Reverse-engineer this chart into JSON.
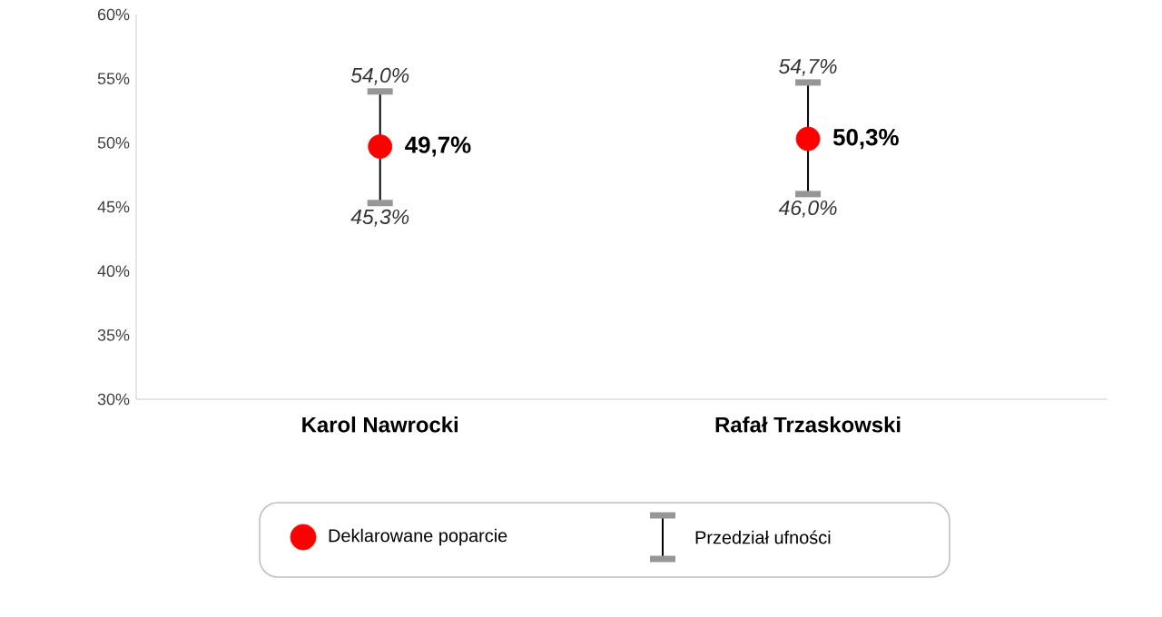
{
  "chart_data": {
    "type": "scatter",
    "categories": [
      "Karol Nawrocki",
      "Rafał Trzaskowski"
    ],
    "series": [
      {
        "name": "Deklarowane poparcie",
        "color": "#ff0000",
        "values": [
          49.7,
          50.3
        ],
        "errors": [
          [
            45.3,
            54.0
          ],
          [
            46.0,
            54.7
          ]
        ],
        "value_labels": [
          "49,7%",
          "50,3%"
        ]
      }
    ],
    "annotations": [
      {
        "text": "54,0%",
        "x": "Karol Nawrocki",
        "y": 54.0
      },
      {
        "text": "45,3%",
        "x": "Karol Nawrocki",
        "y": 45.3
      },
      {
        "text": "54,7%",
        "x": "Rafał Trzaskowski",
        "y": 54.7
      },
      {
        "text": "46,0%",
        "x": "Rafał Trzaskowski",
        "y": 46.0
      },
      "Przedział ufności"
    ],
    "ylim": [
      30,
      60
    ],
    "yticks": [
      {
        "value": 30,
        "label": "30%"
      },
      {
        "value": 35,
        "label": "35%"
      },
      {
        "value": 40,
        "label": "40%"
      },
      {
        "value": 45,
        "label": "45%"
      },
      {
        "value": 50,
        "label": "50%"
      },
      {
        "value": 55,
        "label": "55%"
      },
      {
        "value": 60,
        "label": "60%"
      }
    ],
    "marker": "circle",
    "grid": false,
    "legend": "bottom"
  }
}
